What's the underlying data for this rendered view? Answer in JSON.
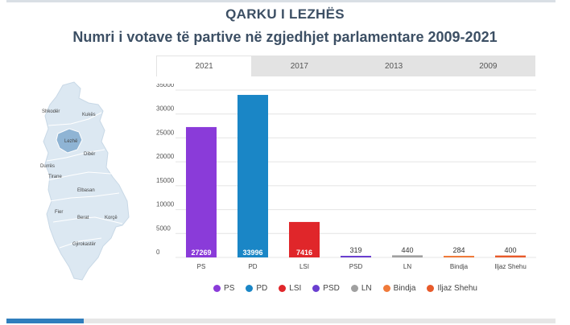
{
  "header": {
    "title": "QARKU I LEZHËS",
    "subtitle": "Numri i votave të partive në zgjedhjet parlamentare 2009-2021"
  },
  "tabs": [
    {
      "label": "2021",
      "active": true
    },
    {
      "label": "2017",
      "active": false
    },
    {
      "label": "2013",
      "active": false
    },
    {
      "label": "2009",
      "active": false
    }
  ],
  "map": {
    "labels": [
      "Shkodër",
      "Kukës",
      "Lezhë",
      "Dibër",
      "Durrës",
      "Tirane",
      "Elbasan",
      "Fier",
      "Berat",
      "Korçë",
      "Gjirokastër"
    ],
    "highlighted": "Lezhë",
    "colors": {
      "land": "#dce8f2",
      "highlight": "#8fb4d4",
      "border": "#ffffff"
    }
  },
  "chart_data": {
    "type": "bar",
    "categories": [
      "PS",
      "PD",
      "LSI",
      "PSD",
      "LN",
      "Bindja",
      "Iljaz Shehu"
    ],
    "values": [
      27269,
      33996,
      7416,
      319,
      440,
      284,
      400
    ],
    "colors": [
      "#8a3bd9",
      "#1a86c6",
      "#e0262a",
      "#6a3fd0",
      "#a0a0a0",
      "#f07a3a",
      "#e85a2a"
    ],
    "ylim": [
      0,
      35000
    ],
    "yticks": [
      0,
      5000,
      10000,
      15000,
      20000,
      25000,
      30000,
      35000
    ],
    "grid": true,
    "legend_position": "bottom"
  }
}
